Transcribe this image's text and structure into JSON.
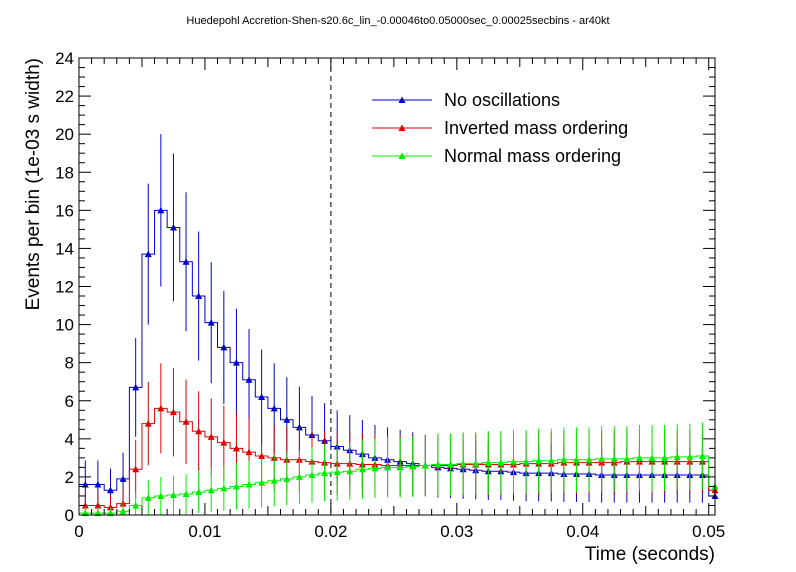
{
  "chart_data": {
    "type": "line",
    "title": "Huedepohl Accretion-Shen-s20.6c_lin_-0.00046to0.05000sec_0.00025secbins - ar40kt",
    "xlabel": "Time (seconds)",
    "ylabel": "Events per bin (1e-03 s width)",
    "xlim": [
      0,
      0.0505
    ],
    "ylim": [
      0,
      24
    ],
    "x_ticks": [
      "0",
      "0.01",
      "0.02",
      "0.03",
      "0.04",
      "0.05"
    ],
    "y_ticks": [
      "0",
      "2",
      "4",
      "6",
      "8",
      "10",
      "12",
      "14",
      "16",
      "18",
      "20",
      "22",
      "24"
    ],
    "reference_line_x": 0.02,
    "bin_width": 0.001,
    "x": [
      0.0005,
      0.0015,
      0.0025,
      0.0035,
      0.0045,
      0.0055,
      0.0065,
      0.0075,
      0.0085,
      0.0095,
      0.0105,
      0.0115,
      0.0125,
      0.0135,
      0.0145,
      0.0155,
      0.0165,
      0.0175,
      0.0185,
      0.0195,
      0.0205,
      0.0215,
      0.0225,
      0.0235,
      0.0245,
      0.0255,
      0.0265,
      0.0275,
      0.0285,
      0.0295,
      0.0305,
      0.0315,
      0.0325,
      0.0335,
      0.0345,
      0.0355,
      0.0365,
      0.0375,
      0.0385,
      0.0395,
      0.0405,
      0.0415,
      0.0425,
      0.0435,
      0.0445,
      0.0455,
      0.0465,
      0.0475,
      0.0485,
      0.0495,
      0.0505
    ],
    "series": [
      {
        "name": "No oscillations",
        "color": "#0000cc",
        "values": [
          1.6,
          1.6,
          1.3,
          1.9,
          6.7,
          13.7,
          16.0,
          15.1,
          13.3,
          11.5,
          10.1,
          8.8,
          8.0,
          7.1,
          6.2,
          5.6,
          5.0,
          4.6,
          4.2,
          3.9,
          3.6,
          3.4,
          3.2,
          3.0,
          2.9,
          2.8,
          2.7,
          2.6,
          2.5,
          2.45,
          2.4,
          2.35,
          2.3,
          2.3,
          2.25,
          2.2,
          2.2,
          2.2,
          2.15,
          2.15,
          2.15,
          2.1,
          2.1,
          2.1,
          2.1,
          2.1,
          2.1,
          2.1,
          2.1,
          2.1,
          1.0
        ]
      },
      {
        "name": "Inverted mass ordering",
        "color": "#dd0000",
        "values": [
          0.5,
          0.5,
          0.4,
          0.6,
          2.4,
          4.8,
          5.6,
          5.4,
          4.9,
          4.4,
          4.1,
          3.8,
          3.5,
          3.3,
          3.1,
          3.0,
          2.9,
          2.9,
          2.8,
          2.75,
          2.7,
          2.7,
          2.65,
          2.65,
          2.6,
          2.6,
          2.6,
          2.6,
          2.6,
          2.6,
          2.65,
          2.65,
          2.65,
          2.65,
          2.65,
          2.7,
          2.7,
          2.7,
          2.75,
          2.75,
          2.75,
          2.75,
          2.75,
          2.8,
          2.8,
          2.8,
          2.8,
          2.8,
          2.8,
          2.8,
          1.3
        ]
      },
      {
        "name": "Normal mass ordering",
        "color": "#00ee00",
        "values": [
          0.1,
          0.1,
          0.1,
          0.2,
          0.5,
          0.9,
          1.0,
          1.05,
          1.1,
          1.2,
          1.3,
          1.4,
          1.5,
          1.6,
          1.7,
          1.8,
          1.9,
          2.0,
          2.1,
          2.2,
          2.25,
          2.3,
          2.4,
          2.45,
          2.5,
          2.5,
          2.55,
          2.6,
          2.65,
          2.65,
          2.7,
          2.7,
          2.75,
          2.75,
          2.8,
          2.8,
          2.85,
          2.85,
          2.9,
          2.9,
          2.9,
          2.95,
          2.95,
          2.95,
          3.0,
          3.0,
          3.0,
          3.05,
          3.05,
          3.1,
          1.5
        ]
      }
    ],
    "legend": "top-right",
    "grid": false
  }
}
